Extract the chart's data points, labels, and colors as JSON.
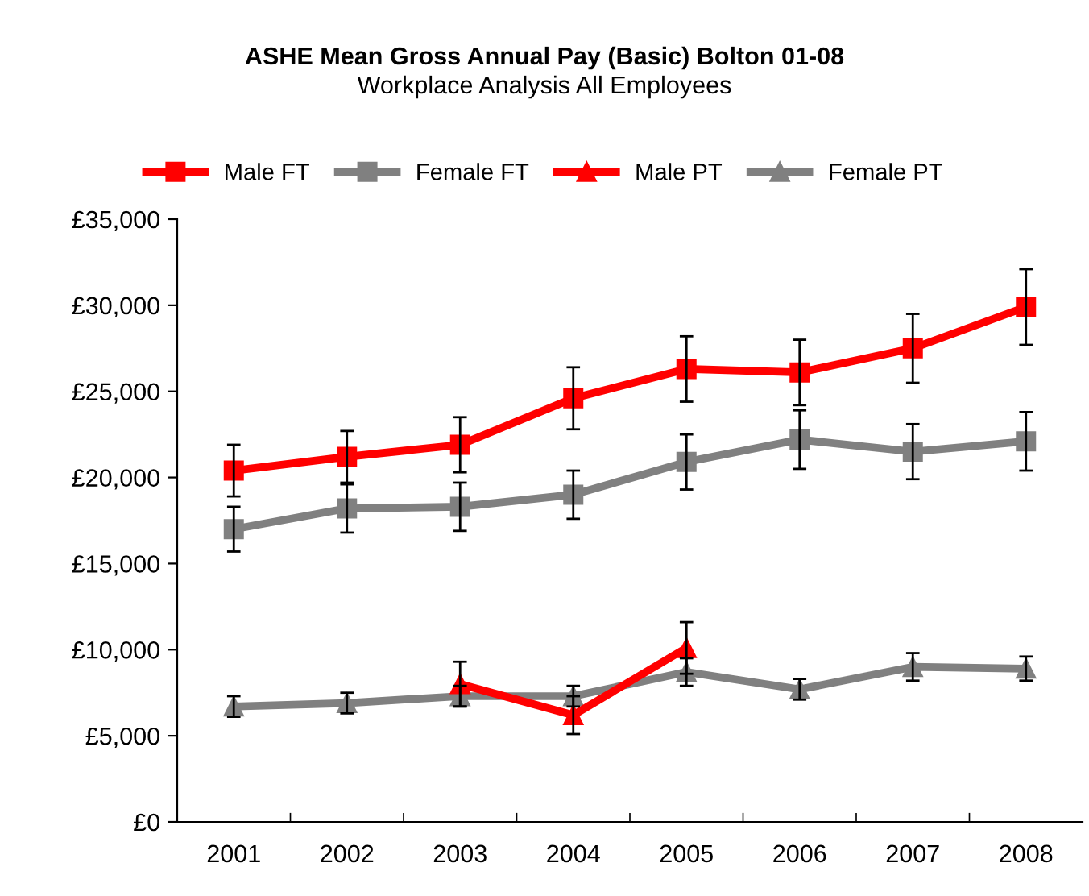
{
  "chart_data": {
    "type": "line",
    "title": "ASHE Mean Gross Annual Pay (Basic) Bolton 01-08",
    "subtitle": "Workplace Analysis All Employees",
    "categories": [
      "2001",
      "2002",
      "2003",
      "2004",
      "2005",
      "2006",
      "2007",
      "2008"
    ],
    "series": [
      {
        "name": "Male FT",
        "color": "#ff0000",
        "marker": "square",
        "values": [
          20400,
          21200,
          21900,
          24600,
          26300,
          26100,
          27500,
          29900
        ],
        "errors": [
          1500,
          1500,
          1600,
          1800,
          1900,
          1900,
          2000,
          2200
        ]
      },
      {
        "name": "Female FT",
        "color": "#808080",
        "marker": "square",
        "values": [
          17000,
          18200,
          18300,
          19000,
          20900,
          22200,
          21500,
          22100
        ],
        "errors": [
          1300,
          1400,
          1400,
          1400,
          1600,
          1700,
          1600,
          1700
        ]
      },
      {
        "name": "Male PT",
        "color": "#ff0000",
        "marker": "triangle",
        "values": [
          null,
          null,
          8000,
          6200,
          10100,
          null,
          null,
          null
        ],
        "errors": [
          null,
          null,
          1300,
          1100,
          1500,
          null,
          null,
          null
        ]
      },
      {
        "name": "Female PT",
        "color": "#808080",
        "marker": "triangle",
        "values": [
          6700,
          6900,
          7300,
          7300,
          8700,
          7700,
          9000,
          8900
        ],
        "errors": [
          600,
          600,
          600,
          600,
          800,
          600,
          800,
          700
        ]
      }
    ],
    "ylim": [
      0,
      35000
    ],
    "yticks": [
      {
        "value": 0,
        "label": "£0"
      },
      {
        "value": 5000,
        "label": "£5,000"
      },
      {
        "value": 10000,
        "label": "£10,000"
      },
      {
        "value": 15000,
        "label": "£15,000"
      },
      {
        "value": 20000,
        "label": "£20,000"
      },
      {
        "value": 25000,
        "label": "£25,000"
      },
      {
        "value": 30000,
        "label": "£30,000"
      },
      {
        "value": 35000,
        "label": "£35,000"
      }
    ],
    "legend": "top",
    "grid": false,
    "line_style": "solid"
  }
}
